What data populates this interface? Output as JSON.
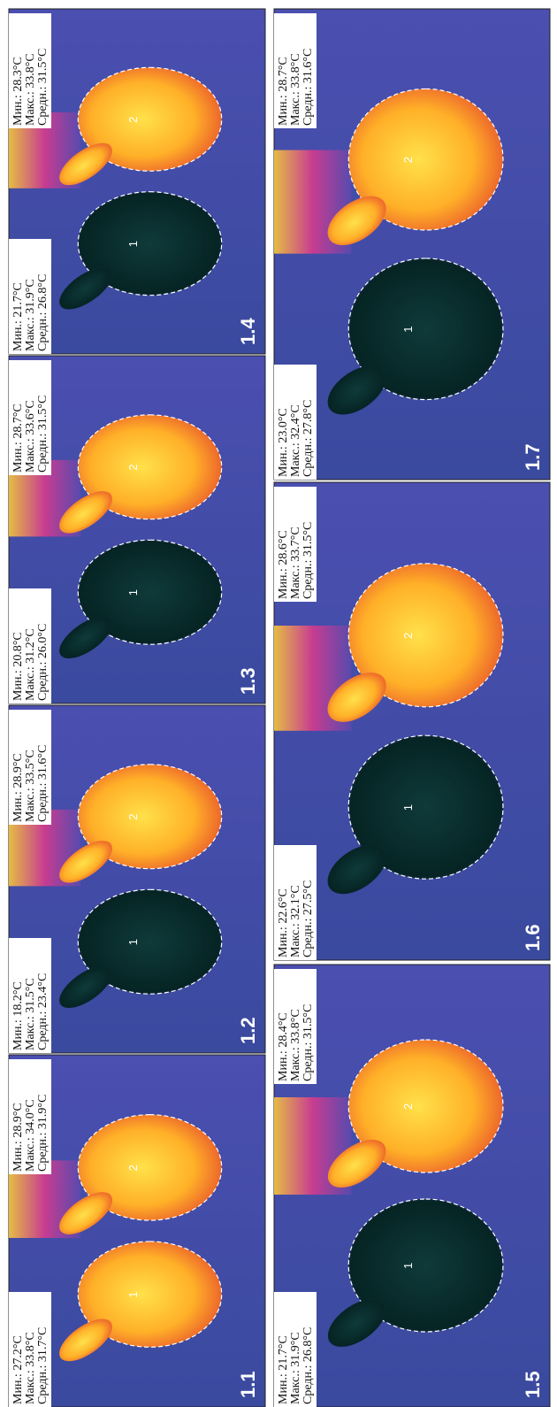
{
  "panels": [
    {
      "label": "1.1",
      "hands": [
        {
          "number": "1",
          "stats": [
            "Мин.: 27.2°C",
            "Макс.: 33.8°C",
            "Средн.: 31.7°C"
          ]
        },
        {
          "number": "2",
          "stats": [
            "Мин.: 28.9°C",
            "Макс.: 34.0°C",
            "Средн.: 31.9°C"
          ]
        }
      ]
    },
    {
      "label": "1.2",
      "hands": [
        {
          "number": "1",
          "stats": [
            "Мин.: 18.2°C",
            "Макс.: 31.5°C",
            "Средн.: 23.4°C"
          ]
        },
        {
          "number": "2",
          "stats": [
            "Мин.: 28.9°C",
            "Макс.: 33.5°C",
            "Средн.: 31.6°C"
          ]
        }
      ]
    },
    {
      "label": "1.3",
      "hands": [
        {
          "number": "1",
          "stats": [
            "Мин.: 20.8°C",
            "Макс.: 31.2°C",
            "Средн.: 26.0°C"
          ]
        },
        {
          "number": "2",
          "stats": [
            "Мин.: 28.7°C",
            "Макс.: 33.6°C",
            "Средн.: 31.5°C"
          ]
        }
      ]
    },
    {
      "label": "1.4",
      "hands": [
        {
          "number": "1",
          "stats": [
            "Мин.: 21.7°C",
            "Макс.: 31.9°C",
            "Средн.: 26.8°C"
          ]
        },
        {
          "number": "2",
          "stats": [
            "Мин.: 28.3°C",
            "Макс.: 33.8°C",
            "Средн.: 31.5°C"
          ]
        }
      ]
    },
    {
      "label": "1.5",
      "hands": [
        {
          "number": "1",
          "stats": [
            "Мин.: 21.7°C",
            "Макс.: 31.9°C",
            "Средн.: 26.8°C"
          ]
        },
        {
          "number": "2",
          "stats": [
            "Мин.: 28.4°C",
            "Макс.: 33.8°C",
            "Средн.: 31.5°C"
          ]
        }
      ]
    },
    {
      "label": "1.6",
      "hands": [
        {
          "number": "1",
          "stats": [
            "Мин.: 22.6°C",
            "Макс.: 32.1°C",
            "Средн.: 27.5°C"
          ]
        },
        {
          "number": "2",
          "stats": [
            "Мин.: 28.6°C",
            "Макс.: 33.7°C",
            "Средн.: 31.5°C"
          ]
        }
      ]
    },
    {
      "label": "1.7",
      "hands": [
        {
          "number": "1",
          "stats": [
            "Мин.: 23.0°C",
            "Макс.: 32.4°C",
            "Средн.: 27.8°C"
          ]
        },
        {
          "number": "2",
          "stats": [
            "Мин.: 28.7°C",
            "Макс.: 33.8°C",
            "Средн.: 31.6°C"
          ]
        }
      ]
    }
  ]
}
